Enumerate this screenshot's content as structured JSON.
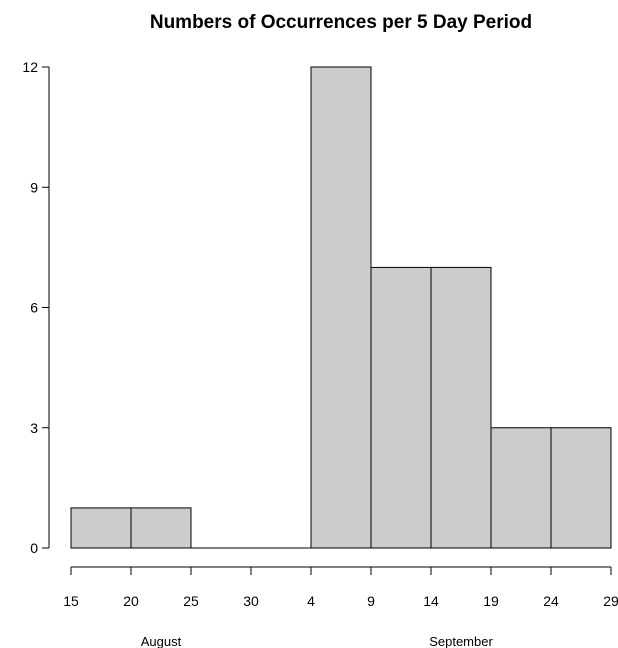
{
  "chart_data": {
    "type": "bar",
    "title": "Numbers of Occurrences per 5 Day Period",
    "xlabel": "",
    "ylabel": "",
    "ylim": [
      0,
      12
    ],
    "y_ticks": [
      "0",
      "3",
      "6",
      "9",
      "12"
    ],
    "x_tick_labels": [
      "15",
      "20",
      "25",
      "30",
      "4",
      "9",
      "14",
      "19",
      "24",
      "29"
    ],
    "x_groups": [
      {
        "label": "August",
        "from_tick": 0,
        "to_tick": 3
      },
      {
        "label": "September",
        "from_tick": 4,
        "to_tick": 9
      }
    ],
    "bins": [
      {
        "start": "15",
        "end": "20",
        "value": 1
      },
      {
        "start": "20",
        "end": "25",
        "value": 1
      },
      {
        "start": "25",
        "end": "30",
        "value": 0
      },
      {
        "start": "30",
        "end": "4",
        "value": 0
      },
      {
        "start": "4",
        "end": "9",
        "value": 12
      },
      {
        "start": "9",
        "end": "14",
        "value": 7
      },
      {
        "start": "14",
        "end": "19",
        "value": 7
      },
      {
        "start": "19",
        "end": "24",
        "value": 3
      },
      {
        "start": "24",
        "end": "29",
        "value": 3
      }
    ],
    "bar_fill": "#cccccc",
    "bar_stroke": "#000000",
    "grid": false
  }
}
